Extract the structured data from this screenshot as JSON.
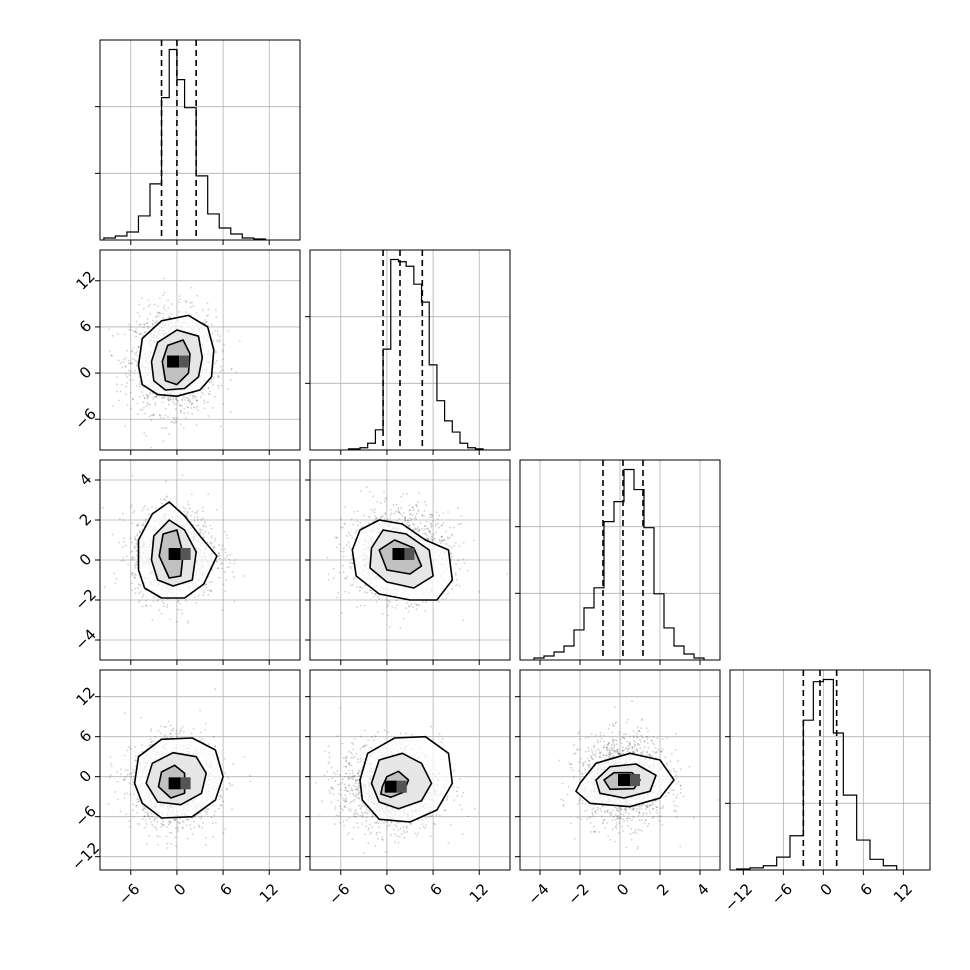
{
  "chart_data": {
    "type": "corner",
    "grid": true,
    "variables": [
      {
        "index": 0,
        "range": [
          -10,
          16
        ],
        "ticks": [
          -6,
          0,
          6,
          12
        ],
        "tick_labels": [
          "−6",
          "0",
          "6",
          "12"
        ],
        "quantiles": [
          -2.0,
          0.0,
          2.5
        ]
      },
      {
        "index": 1,
        "range": [
          -10,
          16
        ],
        "ticks": [
          -6,
          0,
          6,
          12
        ],
        "tick_labels": [
          "−6",
          "0",
          "6",
          "12"
        ],
        "quantiles": [
          -0.5,
          1.7,
          4.6
        ]
      },
      {
        "index": 2,
        "range": [
          -5,
          5
        ],
        "ticks": [
          -4,
          -2,
          0,
          2,
          4
        ],
        "tick_labels": [
          "−4",
          "−2",
          "0",
          "2",
          "4"
        ],
        "quantiles": [
          -0.85,
          0.15,
          1.15
        ]
      },
      {
        "index": 3,
        "range": [
          -14,
          16
        ],
        "ticks": [
          -12,
          -6,
          0,
          6,
          12
        ],
        "tick_labels": [
          "−12",
          "−6",
          "0",
          "6",
          "12"
        ],
        "quantiles": [
          -3.0,
          -0.5,
          2.0
        ]
      }
    ],
    "histograms": [
      {
        "variable": 0,
        "bin_edges": [
          -9.5,
          -8,
          -6.5,
          -5,
          -3.5,
          -2,
          -1,
          0,
          1,
          2.5,
          4,
          5.5,
          7,
          8.5,
          10,
          11.5
        ],
        "counts": [
          1,
          2,
          4,
          12,
          28,
          71,
          95,
          80,
          66,
          32,
          13,
          6,
          3,
          1,
          0.5
        ]
      },
      {
        "variable": 1,
        "bin_edges": [
          -5,
          -3.5,
          -2.5,
          -1.5,
          -0.5,
          0.5,
          1.5,
          2.5,
          3.5,
          4.5,
          5.5,
          6.5,
          7.5,
          8.5,
          9.5,
          10.5,
          11.5,
          12.5
        ],
        "counts": [
          0.5,
          1,
          3,
          9,
          45,
          85,
          84,
          82,
          74,
          66,
          38,
          22,
          13,
          8,
          3,
          1,
          0.5
        ]
      },
      {
        "variable": 2,
        "bin_edges": [
          -4.3,
          -3.8,
          -3.3,
          -2.8,
          -2.3,
          -1.8,
          -1.3,
          -0.8,
          -0.3,
          0.2,
          0.7,
          1.2,
          1.7,
          2.2,
          2.7,
          3.2,
          3.7,
          4.2
        ],
        "counts": [
          1,
          2,
          4,
          7,
          15,
          26,
          36,
          69,
          79,
          95,
          85,
          66,
          33,
          16,
          7,
          3,
          1
        ]
      },
      {
        "variable": 3,
        "bin_edges": [
          -13,
          -11,
          -9,
          -7,
          -5,
          -3,
          -1.5,
          0,
          1.5,
          3,
          5,
          7,
          9,
          11
        ],
        "counts": [
          0.5,
          1,
          2,
          6,
          16,
          70,
          88,
          89,
          64,
          35,
          14,
          5,
          2
        ]
      }
    ],
    "pairs": [
      {
        "x_var": 0,
        "y_var": 1,
        "center": [
          -0.5,
          1.5
        ],
        "contours": [
          {
            "level": 1,
            "points": [
              [
                -4.5,
                -1.5
              ],
              [
                -5,
                1
              ],
              [
                -4.5,
                4.5
              ],
              [
                -2,
                6.8
              ],
              [
                1.5,
                7.5
              ],
              [
                4,
                6
              ],
              [
                4.8,
                3
              ],
              [
                4.5,
                -0.5
              ],
              [
                3,
                -2.2
              ],
              [
                0,
                -3
              ],
              [
                -2.5,
                -2.8
              ]
            ]
          },
          {
            "level": 2,
            "points": [
              [
                -3,
                -1
              ],
              [
                -3.3,
                1.5
              ],
              [
                -2.5,
                4
              ],
              [
                0,
                5.6
              ],
              [
                2.8,
                4.8
              ],
              [
                3.3,
                2
              ],
              [
                2.8,
                -0.5
              ],
              [
                1,
                -2
              ],
              [
                -1.5,
                -2.2
              ]
            ]
          },
          {
            "level": 3,
            "points": [
              [
                -1.5,
                -1
              ],
              [
                -1.9,
                1.5
              ],
              [
                -1.2,
                3.6
              ],
              [
                0.8,
                4.3
              ],
              [
                1.7,
                2.5
              ],
              [
                1.5,
                0
              ],
              [
                0,
                -1.5
              ]
            ]
          }
        ]
      },
      {
        "x_var": 0,
        "y_var": 2,
        "center": [
          -0.3,
          0.3
        ],
        "contours": [
          {
            "level": 1,
            "points": [
              [
                -5,
                -0.5
              ],
              [
                -5,
                1
              ],
              [
                -3.2,
                2.3
              ],
              [
                -1,
                2.9
              ],
              [
                1,
                2.2
              ],
              [
                3,
                1.2
              ],
              [
                5.2,
                0.2
              ],
              [
                3.5,
                -1.2
              ],
              [
                1,
                -1.9
              ],
              [
                -2,
                -1.9
              ],
              [
                -4.2,
                -1.4
              ]
            ]
          },
          {
            "level": 2,
            "points": [
              [
                -3.3,
                0
              ],
              [
                -3,
                1.2
              ],
              [
                -1,
                2.0
              ],
              [
                1,
                1.5
              ],
              [
                2.5,
                0.4
              ],
              [
                2,
                -1
              ],
              [
                -0.5,
                -1.3
              ],
              [
                -2.5,
                -1
              ]
            ]
          },
          {
            "level": 3,
            "points": [
              [
                -2.3,
                0.2
              ],
              [
                -1.8,
                1.3
              ],
              [
                0,
                1.5
              ],
              [
                0.8,
                0.3
              ],
              [
                0.5,
                -0.8
              ],
              [
                -1,
                -0.9
              ]
            ]
          }
        ]
      },
      {
        "x_var": 1,
        "y_var": 2,
        "center": [
          1.5,
          0.3
        ],
        "contours": [
          {
            "level": 1,
            "points": [
              [
                -4.5,
                0.5
              ],
              [
                -3.5,
                1.5
              ],
              [
                -1,
                2.0
              ],
              [
                2,
                1.8
              ],
              [
                5,
                1.0
              ],
              [
                8,
                0.5
              ],
              [
                8.5,
                -1
              ],
              [
                6.5,
                -2.0
              ],
              [
                3,
                -2.0
              ],
              [
                -1,
                -1.7
              ],
              [
                -4,
                -0.8
              ]
            ]
          },
          {
            "level": 2,
            "points": [
              [
                -2,
                0.6
              ],
              [
                -0.5,
                1.5
              ],
              [
                2.5,
                1.3
              ],
              [
                5.5,
                0.5
              ],
              [
                6,
                -0.8
              ],
              [
                3.5,
                -1.4
              ],
              [
                0,
                -1.1
              ],
              [
                -2.2,
                -0.4
              ]
            ]
          },
          {
            "level": 3,
            "points": [
              [
                -1,
                0.5
              ],
              [
                1,
                1.0
              ],
              [
                3.5,
                0.6
              ],
              [
                4.5,
                -0.3
              ],
              [
                3,
                -0.7
              ],
              [
                0,
                -0.5
              ]
            ]
          }
        ]
      },
      {
        "x_var": 0,
        "y_var": 3,
        "center": [
          -0.3,
          -1.0
        ],
        "contours": [
          {
            "level": 1,
            "points": [
              [
                -5.5,
                -1
              ],
              [
                -5,
                3
              ],
              [
                -2,
                5.6
              ],
              [
                2,
                5.8
              ],
              [
                5,
                4
              ],
              [
                6,
                0
              ],
              [
                5,
                -3.5
              ],
              [
                2,
                -6
              ],
              [
                -2,
                -6.2
              ],
              [
                -4.5,
                -4
              ]
            ]
          },
          {
            "level": 2,
            "points": [
              [
                -4,
                -1
              ],
              [
                -3.2,
                2
              ],
              [
                -0.5,
                3.6
              ],
              [
                2.5,
                3
              ],
              [
                3.8,
                0.5
              ],
              [
                3.2,
                -2.5
              ],
              [
                0.5,
                -4.2
              ],
              [
                -2.5,
                -3.8
              ]
            ]
          },
          {
            "level": 3,
            "points": [
              [
                -2.4,
                -1.5
              ],
              [
                -2,
                0.7
              ],
              [
                -0.3,
                1.7
              ],
              [
                1,
                0.5
              ],
              [
                1,
                -2.5
              ],
              [
                -0.8,
                -3.2
              ]
            ]
          }
        ]
      },
      {
        "x_var": 1,
        "y_var": 3,
        "center": [
          0.5,
          -1.5
        ],
        "contours": [
          {
            "level": 1,
            "points": [
              [
                -3.5,
                -0.5
              ],
              [
                -2.5,
                3.5
              ],
              [
                1,
                5.8
              ],
              [
                5,
                6
              ],
              [
                8,
                3.5
              ],
              [
                8.5,
                -1
              ],
              [
                6.5,
                -5
              ],
              [
                3,
                -6.8
              ],
              [
                -1,
                -6.4
              ],
              [
                -3.2,
                -3.5
              ]
            ]
          },
          {
            "level": 2,
            "points": [
              [
                -2,
                -1
              ],
              [
                -1,
                2.5
              ],
              [
                2,
                3.5
              ],
              [
                4.5,
                2
              ],
              [
                5.8,
                -1
              ],
              [
                4.5,
                -3.6
              ],
              [
                1.5,
                -4.8
              ],
              [
                -1,
                -3.8
              ]
            ]
          },
          {
            "level": 3,
            "points": [
              [
                -0.6,
                -1.5
              ],
              [
                0,
                0
              ],
              [
                1.5,
                0.8
              ],
              [
                2.8,
                -0.5
              ],
              [
                2.2,
                -2.3
              ],
              [
                0.5,
                -3.1
              ],
              [
                -0.8,
                -2.6
              ]
            ]
          }
        ]
      },
      {
        "x_var": 2,
        "y_var": 3,
        "center": [
          0.2,
          -0.5
        ],
        "contours": [
          {
            "level": 1,
            "points": [
              [
                -2,
                -1
              ],
              [
                -1.2,
                2
              ],
              [
                0.5,
                3.5
              ],
              [
                2,
                2.5
              ],
              [
                2.7,
                -0.5
              ],
              [
                2,
                -3.2
              ],
              [
                0.5,
                -4.5
              ],
              [
                -1.5,
                -4
              ],
              [
                -2.2,
                -2.2
              ]
            ]
          },
          {
            "level": 2,
            "points": [
              [
                -1.2,
                -0.5
              ],
              [
                -0.5,
                1.5
              ],
              [
                0.8,
                1.9
              ],
              [
                1.8,
                0.2
              ],
              [
                1.5,
                -2.2
              ],
              [
                0.2,
                -3.2
              ],
              [
                -1,
                -2.5
              ]
            ]
          },
          {
            "level": 3,
            "points": [
              [
                -0.8,
                -0.5
              ],
              [
                -0.3,
                0.6
              ],
              [
                0.6,
                0.6
              ],
              [
                1.0,
                -0.5
              ],
              [
                0.7,
                -1.8
              ],
              [
                -0.5,
                -1.9
              ]
            ]
          }
        ]
      }
    ]
  }
}
